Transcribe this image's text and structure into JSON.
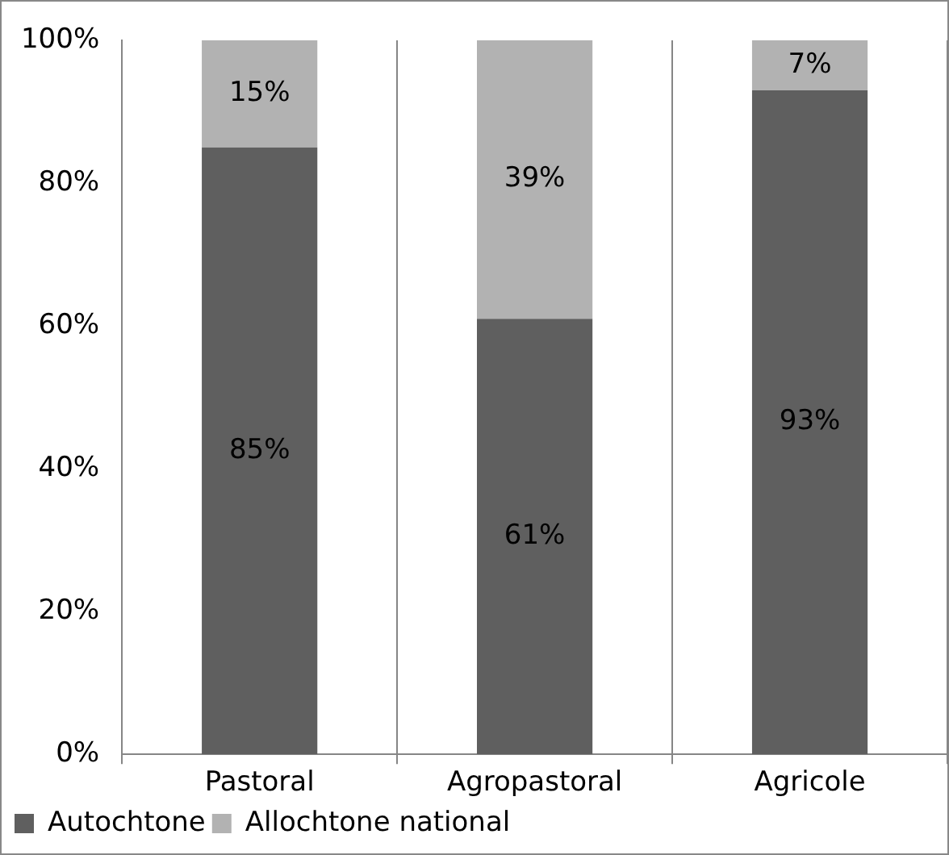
{
  "chart_data": {
    "type": "bar",
    "stacked": true,
    "categories": [
      "Pastoral",
      "Agropastoral",
      "Agricole"
    ],
    "series": [
      {
        "name": "Autochtone",
        "color": "#5f5f5f",
        "values": [
          85,
          61,
          93
        ],
        "value_labels": [
          "85%",
          "61%",
          "93%"
        ]
      },
      {
        "name": "Allochtone national",
        "color": "#b2b2b2",
        "values": [
          15,
          39,
          7
        ],
        "value_labels": [
          "15%",
          "39%",
          "7%"
        ]
      }
    ],
    "ylim": [
      0,
      100
    ],
    "yticks": [
      {
        "value": 0,
        "label": "0%"
      },
      {
        "value": 20,
        "label": "20%"
      },
      {
        "value": 40,
        "label": "40%"
      },
      {
        "value": 60,
        "label": "60%"
      },
      {
        "value": 80,
        "label": "80%"
      },
      {
        "value": 100,
        "label": "100%"
      }
    ],
    "grid": "x",
    "legend": "bottom"
  }
}
